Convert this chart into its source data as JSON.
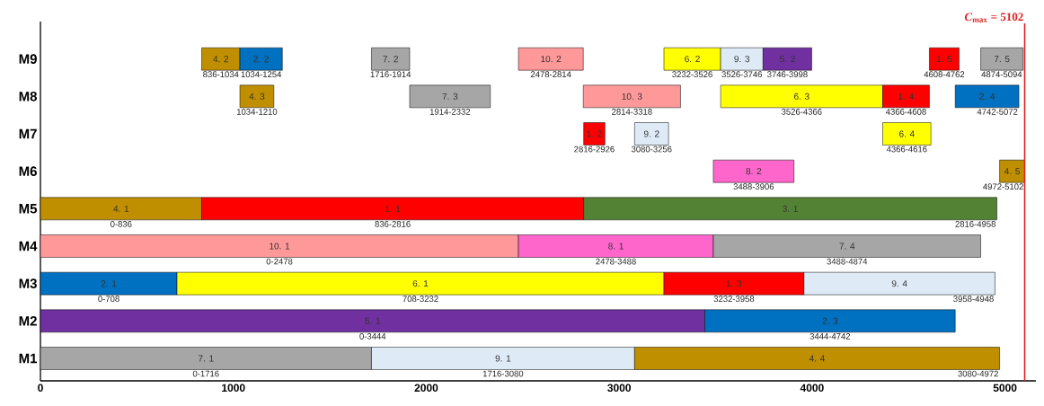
{
  "chart_data": {
    "type": "bar",
    "orientation": "horizontal",
    "categories": [
      "M9",
      "M8",
      "M7",
      "M6",
      "M5",
      "M4",
      "M3",
      "M2",
      "M1"
    ],
    "xlim": [
      0,
      5160
    ],
    "xticks": [
      0,
      1000,
      2000,
      3000,
      4000,
      5000
    ],
    "ref_lines": [
      {
        "axis": "x",
        "value": 5102,
        "label": "*C*$_{max}$ = 5102",
        "color": "#e02020"
      }
    ],
    "series": [
      {
        "name": "4. 2",
        "color": "#bf8f00",
        "values": [
          198,
          null,
          null,
          null,
          null,
          null,
          null,
          null,
          null
        ],
        "base": [
          836,
          null,
          null,
          null,
          null,
          null,
          null,
          null,
          null
        ],
        "value_labels": [
          "836-1034",
          null,
          null,
          null,
          null,
          null,
          null,
          null,
          null
        ]
      },
      {
        "name": "2. 2",
        "color": "#0070c0",
        "values": [
          220,
          null,
          null,
          null,
          null,
          null,
          null,
          null,
          null
        ],
        "base": [
          1034,
          null,
          null,
          null,
          null,
          null,
          null,
          null,
          null
        ],
        "value_labels": [
          "1034-1254",
          null,
          null,
          null,
          null,
          null,
          null,
          null,
          null
        ]
      },
      {
        "name": "7. 2",
        "color": "#a6a6a6",
        "values": [
          198,
          null,
          null,
          null,
          null,
          null,
          null,
          null,
          null
        ],
        "base": [
          1716,
          null,
          null,
          null,
          null,
          null,
          null,
          null,
          null
        ],
        "value_labels": [
          "1716-1914",
          null,
          null,
          null,
          null,
          null,
          null,
          null,
          null
        ]
      },
      {
        "name": "10. 2",
        "color": "#ff9999",
        "values": [
          336,
          null,
          null,
          null,
          null,
          null,
          null,
          null,
          null
        ],
        "base": [
          2478,
          null,
          null,
          null,
          null,
          null,
          null,
          null,
          null
        ],
        "value_labels": [
          "2478-2814",
          null,
          null,
          null,
          null,
          null,
          null,
          null,
          null
        ]
      },
      {
        "name": "6. 2",
        "color": "#ffff00",
        "values": [
          294,
          null,
          null,
          null,
          null,
          null,
          null,
          null,
          null
        ],
        "base": [
          3232,
          null,
          null,
          null,
          null,
          null,
          null,
          null,
          null
        ],
        "value_labels": [
          "3232-3526",
          null,
          null,
          null,
          null,
          null,
          null,
          null,
          null
        ]
      },
      {
        "name": "9. 3",
        "color": "#deebf7",
        "values": [
          220,
          null,
          null,
          null,
          null,
          null,
          null,
          null,
          null
        ],
        "base": [
          3526,
          null,
          null,
          null,
          null,
          null,
          null,
          null,
          null
        ],
        "value_labels": [
          "3526-3746",
          null,
          null,
          null,
          null,
          null,
          null,
          null,
          null
        ]
      },
      {
        "name": "5. 2",
        "color": "#7030a0",
        "values": [
          252,
          null,
          null,
          null,
          null,
          null,
          null,
          null,
          null
        ],
        "base": [
          3746,
          null,
          null,
          null,
          null,
          null,
          null,
          null,
          null
        ],
        "value_labels": [
          "3746-3998",
          null,
          null,
          null,
          null,
          null,
          null,
          null,
          null
        ]
      },
      {
        "name": "1. 5",
        "color": "#ff0000",
        "values": [
          154,
          null,
          null,
          null,
          null,
          null,
          null,
          null,
          null
        ],
        "base": [
          4608,
          null,
          null,
          null,
          null,
          null,
          null,
          null,
          null
        ],
        "value_labels": [
          "4608-4762",
          null,
          null,
          null,
          null,
          null,
          null,
          null,
          null
        ]
      },
      {
        "name": "7. 5",
        "color": "#a6a6a6",
        "values": [
          220,
          null,
          null,
          null,
          null,
          null,
          null,
          null,
          null
        ],
        "base": [
          4874,
          null,
          null,
          null,
          null,
          null,
          null,
          null,
          null
        ],
        "value_labels": [
          "4874-5094",
          null,
          null,
          null,
          null,
          null,
          null,
          null,
          null
        ]
      },
      {
        "name": "4. 3",
        "color": "#bf8f00",
        "values": [
          null,
          176,
          null,
          null,
          null,
          null,
          null,
          null,
          null
        ],
        "base": [
          null,
          1034,
          null,
          null,
          null,
          null,
          null,
          null,
          null
        ],
        "value_labels": [
          null,
          "1034-1210",
          null,
          null,
          null,
          null,
          null,
          null,
          null
        ]
      },
      {
        "name": "7. 3",
        "color": "#a6a6a6",
        "values": [
          null,
          418,
          null,
          null,
          null,
          null,
          null,
          null,
          null
        ],
        "base": [
          null,
          1914,
          null,
          null,
          null,
          null,
          null,
          null,
          null
        ],
        "value_labels": [
          null,
          "1914-2332",
          null,
          null,
          null,
          null,
          null,
          null,
          null
        ]
      },
      {
        "name": "10. 3",
        "color": "#ff9999",
        "values": [
          null,
          504,
          null,
          null,
          null,
          null,
          null,
          null,
          null
        ],
        "base": [
          null,
          2814,
          null,
          null,
          null,
          null,
          null,
          null,
          null
        ],
        "value_labels": [
          null,
          "2814-3318",
          null,
          null,
          null,
          null,
          null,
          null,
          null
        ]
      },
      {
        "name": "6. 3",
        "color": "#ffff00",
        "values": [
          null,
          840,
          null,
          null,
          null,
          null,
          null,
          null,
          null
        ],
        "base": [
          null,
          3526,
          null,
          null,
          null,
          null,
          null,
          null,
          null
        ],
        "value_labels": [
          null,
          "3526-4366",
          null,
          null,
          null,
          null,
          null,
          null,
          null
        ]
      },
      {
        "name": "1. 4",
        "color": "#ff0000",
        "values": [
          null,
          242,
          null,
          null,
          null,
          null,
          null,
          null,
          null
        ],
        "base": [
          null,
          4366,
          null,
          null,
          null,
          null,
          null,
          null,
          null
        ],
        "value_labels": [
          null,
          "4366-4608",
          null,
          null,
          null,
          null,
          null,
          null,
          null
        ]
      },
      {
        "name": "2. 4",
        "color": "#0070c0",
        "values": [
          null,
          330,
          null,
          null,
          null,
          null,
          null,
          null,
          null
        ],
        "base": [
          null,
          4742,
          null,
          null,
          null,
          null,
          null,
          null,
          null
        ],
        "value_labels": [
          null,
          "4742-5072",
          null,
          null,
          null,
          null,
          null,
          null,
          null
        ]
      },
      {
        "name": "1. 2",
        "color": "#ff0000",
        "values": [
          null,
          null,
          110,
          null,
          null,
          null,
          null,
          null,
          null
        ],
        "base": [
          null,
          null,
          2816,
          null,
          null,
          null,
          null,
          null,
          null
        ],
        "value_labels": [
          null,
          null,
          "2816-2926",
          null,
          null,
          null,
          null,
          null,
          null
        ]
      },
      {
        "name": "9. 2",
        "color": "#deebf7",
        "values": [
          null,
          null,
          176,
          null,
          null,
          null,
          null,
          null,
          null
        ],
        "base": [
          null,
          null,
          3080,
          null,
          null,
          null,
          null,
          null,
          null
        ],
        "value_labels": [
          null,
          null,
          "3080-3256",
          null,
          null,
          null,
          null,
          null,
          null
        ]
      },
      {
        "name": "6. 4",
        "color": "#ffff00",
        "values": [
          null,
          null,
          250,
          null,
          null,
          null,
          null,
          null,
          null
        ],
        "base": [
          null,
          null,
          4366,
          null,
          null,
          null,
          null,
          null,
          null
        ],
        "value_labels": [
          null,
          null,
          "4366-4616",
          null,
          null,
          null,
          null,
          null,
          null
        ]
      },
      {
        "name": "8. 2",
        "color": "#ff66cc",
        "values": [
          null,
          null,
          null,
          418,
          null,
          null,
          null,
          null,
          null
        ],
        "base": [
          null,
          null,
          null,
          3488,
          null,
          null,
          null,
          null,
          null
        ],
        "value_labels": [
          null,
          null,
          null,
          "3488-3906",
          null,
          null,
          null,
          null,
          null
        ]
      },
      {
        "name": "4. 5",
        "color": "#bf8f00",
        "values": [
          null,
          null,
          null,
          130,
          null,
          null,
          null,
          null,
          null
        ],
        "base": [
          null,
          null,
          null,
          4972,
          null,
          null,
          null,
          null,
          null
        ],
        "value_labels": [
          null,
          null,
          null,
          "4972-5102",
          null,
          null,
          null,
          null,
          null
        ]
      },
      {
        "name": "4. 1",
        "color": "#bf8f00",
        "values": [
          null,
          null,
          null,
          null,
          836,
          null,
          null,
          null,
          null
        ],
        "base": [
          null,
          null,
          null,
          null,
          0,
          null,
          null,
          null,
          null
        ],
        "value_labels": [
          null,
          null,
          null,
          null,
          "0-836",
          null,
          null,
          null,
          null
        ]
      },
      {
        "name": "1. 1",
        "color": "#ff0000",
        "values": [
          null,
          null,
          null,
          null,
          1980,
          null,
          null,
          null,
          null
        ],
        "base": [
          null,
          null,
          null,
          null,
          836,
          null,
          null,
          null,
          null
        ],
        "value_labels": [
          null,
          null,
          null,
          null,
          "836-2816",
          null,
          null,
          null,
          null
        ]
      },
      {
        "name": "3. 1",
        "color": "#548235",
        "values": [
          null,
          null,
          null,
          null,
          2142,
          null,
          null,
          null,
          null
        ],
        "base": [
          null,
          null,
          null,
          null,
          2816,
          null,
          null,
          null,
          null
        ],
        "value_labels": [
          null,
          null,
          null,
          null,
          "2816-4958",
          null,
          null,
          null,
          null
        ]
      },
      {
        "name": "10. 1",
        "color": "#ff9999",
        "values": [
          null,
          null,
          null,
          null,
          null,
          2478,
          null,
          null,
          null
        ],
        "base": [
          null,
          null,
          null,
          null,
          null,
          0,
          null,
          null,
          null
        ],
        "value_labels": [
          null,
          null,
          null,
          null,
          null,
          "0-2478",
          null,
          null,
          null
        ]
      },
      {
        "name": "8. 1",
        "color": "#ff66cc",
        "values": [
          null,
          null,
          null,
          null,
          null,
          1010,
          null,
          null,
          null
        ],
        "base": [
          null,
          null,
          null,
          null,
          null,
          2478,
          null,
          null,
          null
        ],
        "value_labels": [
          null,
          null,
          null,
          null,
          null,
          "2478-3488",
          null,
          null,
          null
        ]
      },
      {
        "name": "7. 4",
        "color": "#a6a6a6",
        "values": [
          null,
          null,
          null,
          null,
          null,
          1386,
          null,
          null,
          null
        ],
        "base": [
          null,
          null,
          null,
          null,
          null,
          3488,
          null,
          null,
          null
        ],
        "value_labels": [
          null,
          null,
          null,
          null,
          null,
          "3488-4874",
          null,
          null,
          null
        ]
      },
      {
        "name": "2. 1",
        "color": "#0070c0",
        "values": [
          null,
          null,
          null,
          null,
          null,
          null,
          708,
          null,
          null
        ],
        "base": [
          null,
          null,
          null,
          null,
          null,
          null,
          0,
          null,
          null
        ],
        "value_labels": [
          null,
          null,
          null,
          null,
          null,
          null,
          "0-708",
          null,
          null
        ]
      },
      {
        "name": "6. 1",
        "color": "#ffff00",
        "values": [
          null,
          null,
          null,
          null,
          null,
          null,
          2524,
          null,
          null
        ],
        "base": [
          null,
          null,
          null,
          null,
          null,
          null,
          708,
          null,
          null
        ],
        "value_labels": [
          null,
          null,
          null,
          null,
          null,
          null,
          "708-3232",
          null,
          null
        ]
      },
      {
        "name": "1. 3",
        "color": "#ff0000",
        "values": [
          null,
          null,
          null,
          null,
          null,
          null,
          726,
          null,
          null
        ],
        "base": [
          null,
          null,
          null,
          null,
          null,
          null,
          3232,
          null,
          null
        ],
        "value_labels": [
          null,
          null,
          null,
          null,
          null,
          null,
          "3232-3958",
          null,
          null
        ]
      },
      {
        "name": "9. 4",
        "color": "#deebf7",
        "values": [
          null,
          null,
          null,
          null,
          null,
          null,
          990,
          null,
          null
        ],
        "base": [
          null,
          null,
          null,
          null,
          null,
          null,
          3958,
          null,
          null
        ],
        "value_labels": [
          null,
          null,
          null,
          null,
          null,
          null,
          "3958-4948",
          null,
          null
        ]
      },
      {
        "name": "5. 1",
        "color": "#7030a0",
        "values": [
          null,
          null,
          null,
          null,
          null,
          null,
          null,
          3444,
          null
        ],
        "base": [
          null,
          null,
          null,
          null,
          null,
          null,
          null,
          0,
          null
        ],
        "value_labels": [
          null,
          null,
          null,
          null,
          null,
          null,
          null,
          "0-3444",
          null
        ]
      },
      {
        "name": "2. 3",
        "color": "#0070c0",
        "values": [
          null,
          null,
          null,
          null,
          null,
          null,
          null,
          1298,
          null
        ],
        "base": [
          null,
          null,
          null,
          null,
          null,
          null,
          null,
          3444,
          null
        ],
        "value_labels": [
          null,
          null,
          null,
          null,
          null,
          null,
          null,
          "3444-4742",
          null
        ]
      },
      {
        "name": "7. 1",
        "color": "#a6a6a6",
        "values": [
          null,
          null,
          null,
          null,
          null,
          null,
          null,
          null,
          1716
        ],
        "base": [
          null,
          null,
          null,
          null,
          null,
          null,
          null,
          null,
          0
        ],
        "value_labels": [
          null,
          null,
          null,
          null,
          null,
          null,
          null,
          null,
          "0-1716"
        ]
      },
      {
        "name": "9. 1",
        "color": "#deebf7",
        "values": [
          null,
          null,
          null,
          null,
          null,
          null,
          null,
          null,
          1364
        ],
        "base": [
          null,
          null,
          null,
          null,
          null,
          null,
          null,
          null,
          1716
        ],
        "value_labels": [
          null,
          null,
          null,
          null,
          null,
          null,
          null,
          null,
          "1716-3080"
        ]
      },
      {
        "name": "4. 4",
        "color": "#bf8f00",
        "values": [
          null,
          null,
          null,
          null,
          null,
          null,
          null,
          null,
          1892
        ],
        "base": [
          null,
          null,
          null,
          null,
          null,
          null,
          null,
          null,
          3080
        ],
        "value_labels": [
          null,
          null,
          null,
          null,
          null,
          null,
          null,
          null,
          "3080-4972"
        ]
      }
    ]
  }
}
